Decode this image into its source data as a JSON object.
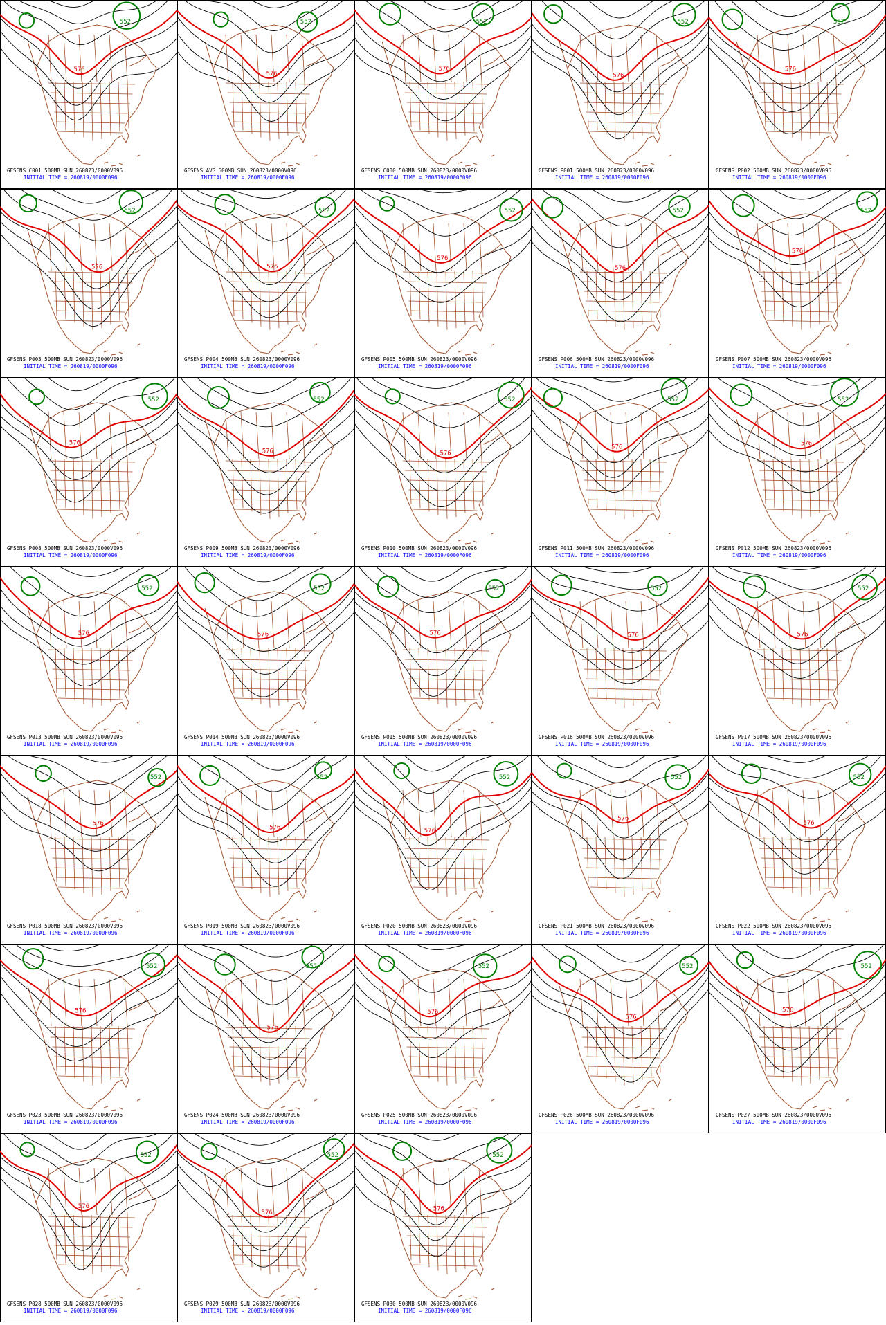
{
  "panels": [
    "GFSENS C001 500MB SUN 260823/0000V096",
    "GFSENS AVG 500MB SUN 260823/0000V096",
    "GFSENS C000 500MB SUN 260823/0000V096",
    "GFSENS P001 500MB SUN 260823/0000V096",
    "GFSENS P002 500MB SUN 260823/0000V096",
    "GFSENS P003 500MB SUN 260823/0000V096",
    "GFSENS P004 500MB SUN 260823/0000V096",
    "GFSENS P005 500MB SUN 260823/0000V096",
    "GFSENS P006 500MB SUN 260823/0000V096",
    "GFSENS P007 500MB SUN 260823/0000V096",
    "GFSENS P008 500MB SUN 260823/0000V096",
    "GFSENS P009 500MB SUN 260823/0000V096",
    "GFSENS P010 500MB SUN 260823/0000V096",
    "GFSENS P011 500MB SUN 260823/0000V096",
    "GFSENS P012 500MB SUN 260823/0000V096",
    "GFSENS P013 500MB SUN 260823/0000V096",
    "GFSENS P014 500MB SUN 260823/0000V096",
    "GFSENS P015 500MB SUN 260823/0000V096",
    "GFSENS P016 500MB SUN 260823/0000V096",
    "GFSENS P017 500MB SUN 260823/0000V096",
    "GFSENS P018 500MB SUN 260823/0000V096",
    "GFSENS P019 500MB SUN 260823/0000V096",
    "GFSENS P020 500MB SUN 260823/0000V096",
    "GFSENS P021 500MB SUN 260823/0000V096",
    "GFSENS P022 500MB SUN 260823/0000V096",
    "GFSENS P023 500MB SUN 260823/0000V096",
    "GFSENS P024 500MB SUN 260823/0000V096",
    "GFSENS P025 500MB SUN 260823/0000V096",
    "GFSENS P026 500MB SUN 260823/0000V096",
    "GFSENS P027 500MB SUN 260823/0000V096",
    "GFSENS P028 500MB SUN 260823/0000V096",
    "GFSENS P029 500MB SUN 260823/0000V096",
    "GFSENS P030 500MB SUN 260823/0000V096"
  ],
  "init_time": "INITIAL TIME = 260819/0000F096",
  "contour_labels": {
    "red": "576",
    "green": "552"
  }
}
